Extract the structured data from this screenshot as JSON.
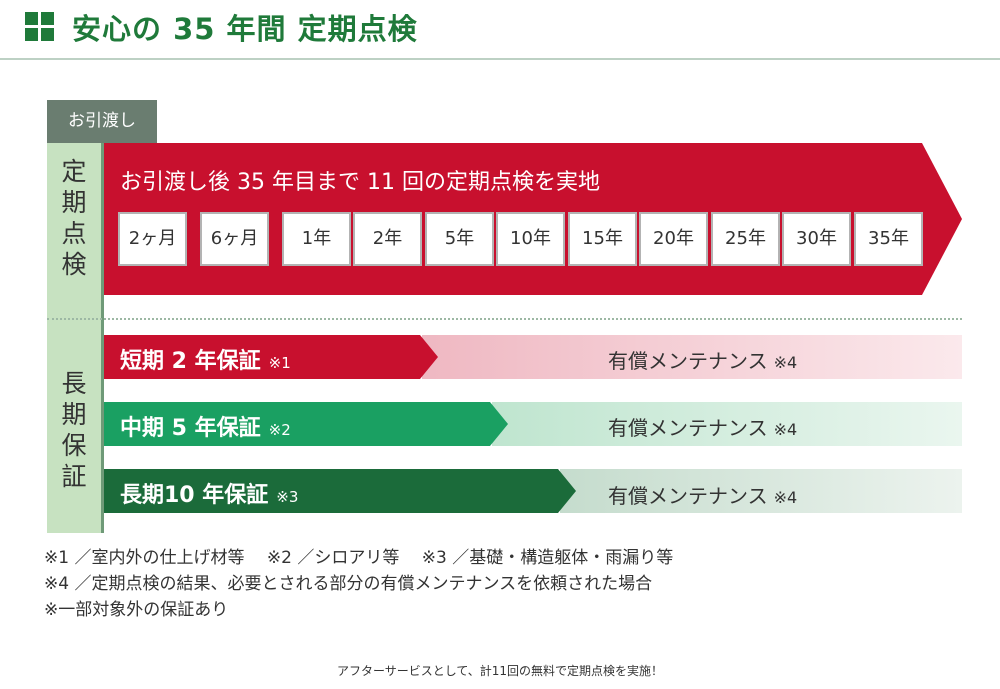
{
  "header": {
    "title": "安心の 35 年間 定期点検",
    "accent_color": "#1f7a3a",
    "icon": "grid-squares-icon"
  },
  "timeline": {
    "handover_tab": "お引渡し",
    "inspection_label": [
      "定",
      "期",
      "点",
      "検"
    ],
    "warranty_label": [
      "長",
      "期",
      "保",
      "証"
    ]
  },
  "inspection": {
    "heading": "お引渡し後 35 年目まで 11 回の定期点検を実地",
    "color": "#c8102e",
    "milestones": [
      "2ヶ月",
      "6ヶ月",
      "1年",
      "2年",
      "5年",
      "10年",
      "15年",
      "20年",
      "25年",
      "30年",
      "35年"
    ]
  },
  "warranties": [
    {
      "label": "短期 2 年保証",
      "note": "※1",
      "color": "#c8102e",
      "paid_label": "有償メンテナンス",
      "paid_note": "※4"
    },
    {
      "label": "中期 5 年保証",
      "note": "※2",
      "color": "#1aa062",
      "paid_label": "有償メンテナンス",
      "paid_note": "※4"
    },
    {
      "label": "長期10 年保証",
      "note": "※3",
      "color": "#1b6b3a",
      "paid_label": "有償メンテナンス",
      "paid_note": "※4"
    }
  ],
  "footnotes": [
    "※1 ／室内外の仕上げ材等　 ※2 ／シロアリ等　 ※3 ／基礎・構造躯体・雨漏り等",
    "※4 ／定期点検の結果、必要とされる部分の有償メンテナンスを依頼された場合",
    "※一部対象外の保証あり"
  ],
  "caption": "アフターサービスとして、計11回の無料で定期点検を実施！"
}
